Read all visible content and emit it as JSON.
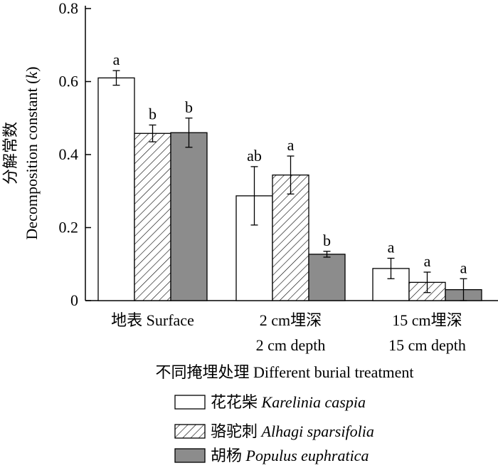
{
  "chart_data": {
    "type": "bar",
    "ylabel_cn": "分解常数",
    "ylabel_en": "Decomposition constant (",
    "ylabel_k": "k",
    "ylabel_close": ")",
    "xlabel": "不同掩埋处理 Different burial treatment",
    "ylim": [
      0,
      0.8
    ],
    "yticks": [
      "0",
      "0.2",
      "0.4",
      "0.6",
      "0.8"
    ],
    "ytick_values": [
      0,
      0.2,
      0.4,
      0.6,
      0.8
    ],
    "categories": [
      {
        "line1": "地表 Surface",
        "line2": ""
      },
      {
        "line1": "2 cm埋深",
        "line2": "2 cm depth"
      },
      {
        "line1": "15 cm埋深",
        "line2": "15 cm depth"
      }
    ],
    "series": [
      {
        "name_cn": "花花柴",
        "name_latin": "Karelinia caspia",
        "pattern": "white",
        "values": [
          0.61,
          0.287,
          0.088
        ],
        "errors": [
          0.02,
          0.08,
          0.028
        ],
        "sig": [
          "a",
          "ab",
          "a"
        ]
      },
      {
        "name_cn": "骆驼刺",
        "name_latin": "Alhagi sparsifolia",
        "pattern": "hatch",
        "values": [
          0.458,
          0.344,
          0.05
        ],
        "errors": [
          0.023,
          0.052,
          0.028
        ],
        "sig": [
          "b",
          "a",
          "a"
        ]
      },
      {
        "name_cn": "胡杨",
        "name_latin": "Populus euphratica",
        "pattern": "gray",
        "values": [
          0.46,
          0.127,
          0.03
        ],
        "errors": [
          0.04,
          0.008,
          0.03
        ],
        "sig": [
          "b",
          "b",
          "a"
        ]
      }
    ],
    "colors": {
      "gray": "#8c8c8c",
      "white": "#ffffff",
      "stroke": "#000000"
    }
  }
}
